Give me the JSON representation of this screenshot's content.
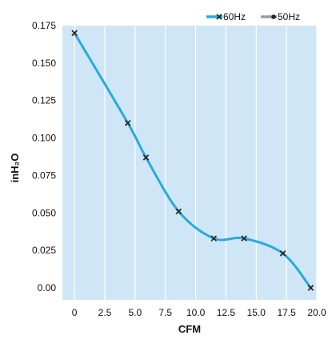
{
  "chart_data": {
    "type": "line",
    "title": "",
    "xlabel": "CFM",
    "ylabel": "inH₂O",
    "xlim": [
      -1,
      20
    ],
    "ylim": [
      -0.008,
      0.175
    ],
    "x_ticks": [
      0,
      2.5,
      5.0,
      7.5,
      10.0,
      12.5,
      15.0,
      17.5,
      20.0
    ],
    "x_tick_labels": [
      "0",
      "2.5",
      "5.0",
      "7.5",
      "10.0",
      "12.5",
      "15.0",
      "17.5",
      "20.0"
    ],
    "y_ticks": [
      0,
      0.025,
      0.05,
      0.075,
      0.1,
      0.125,
      0.15,
      0.175
    ],
    "y_tick_labels": [
      "0.00",
      "0.025",
      "0.050",
      "0.075",
      "0.100",
      "0.125",
      "0.150",
      "0.175"
    ],
    "grid": "vertical",
    "legend_position": "top-right",
    "plot_background": "#cfe6f7",
    "grid_color": "#ffffff",
    "series": [
      {
        "name": "60Hz",
        "color": "#2aa9dc",
        "marker": "x",
        "points": [
          {
            "x": 0,
            "y": 0.17
          },
          {
            "x": 4.4,
            "y": 0.11
          },
          {
            "x": 5.9,
            "y": 0.087
          },
          {
            "x": 8.6,
            "y": 0.051
          },
          {
            "x": 11.5,
            "y": 0.033
          },
          {
            "x": 14.0,
            "y": 0.033
          },
          {
            "x": 17.2,
            "y": 0.023
          },
          {
            "x": 19.5,
            "y": 0.0
          }
        ]
      },
      {
        "name": "50Hz",
        "color": "#9a9a9a",
        "marker": "dot",
        "points": []
      }
    ]
  }
}
